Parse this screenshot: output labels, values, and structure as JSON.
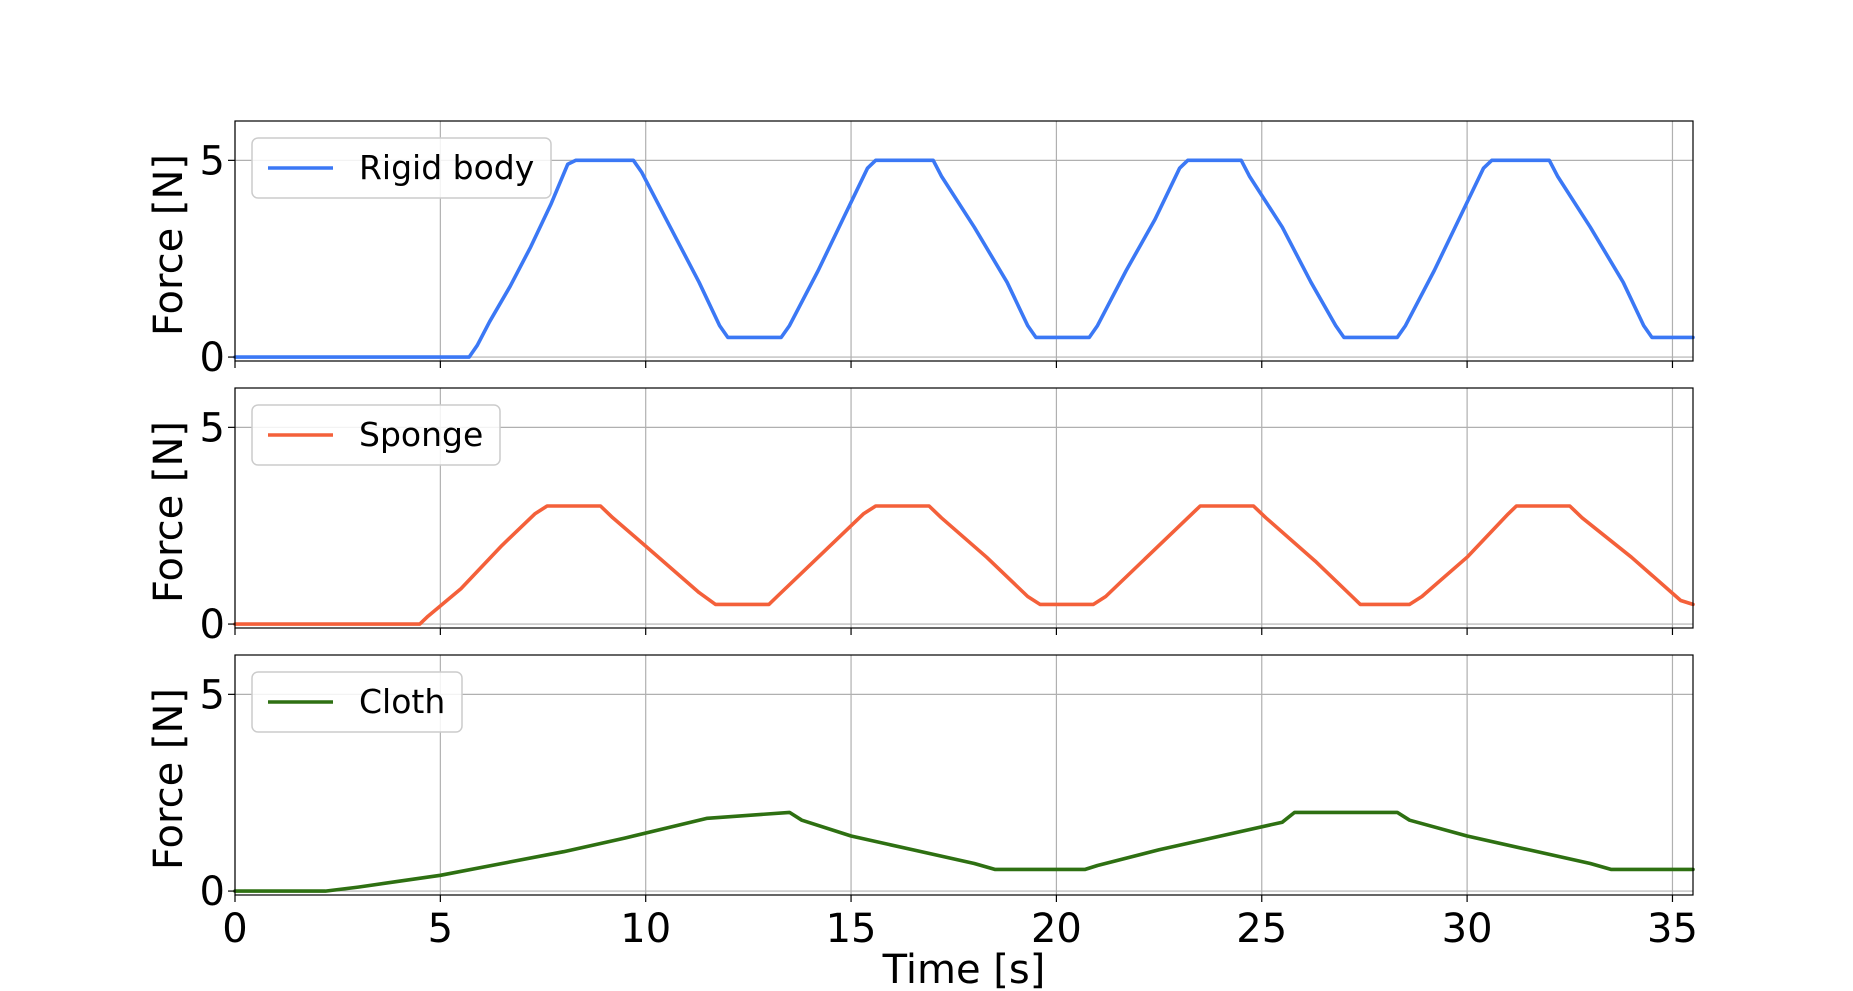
{
  "chart_data": [
    {
      "type": "line",
      "ylabel": "Force [N]",
      "xlim": [
        0,
        35.5
      ],
      "ylim": [
        -0.1,
        6.0
      ],
      "yticks": [
        0,
        5
      ],
      "grid": true,
      "legend_position": "top-left",
      "series": [
        {
          "name": "Rigid body",
          "color": "#3b78f5",
          "x": [
            0,
            5.7,
            5.9,
            6.2,
            6.7,
            7.2,
            7.7,
            8.1,
            8.3,
            9.7,
            9.9,
            10.6,
            11.3,
            11.8,
            12.0,
            13.3,
            13.5,
            14.2,
            14.8,
            15.4,
            15.6,
            17.0,
            17.2,
            18.0,
            18.8,
            19.3,
            19.5,
            20.8,
            21.0,
            21.7,
            22.4,
            23.0,
            23.2,
            24.5,
            24.7,
            25.5,
            26.2,
            26.8,
            27.0,
            28.3,
            28.5,
            29.2,
            29.8,
            30.4,
            30.6,
            32.0,
            32.2,
            33.0,
            33.8,
            34.3,
            34.5,
            35.5
          ],
          "y": [
            0,
            0,
            0.3,
            0.9,
            1.8,
            2.8,
            3.9,
            4.9,
            5.0,
            5.0,
            4.7,
            3.3,
            1.9,
            0.8,
            0.5,
            0.5,
            0.8,
            2.2,
            3.5,
            4.8,
            5.0,
            5.0,
            4.6,
            3.3,
            1.9,
            0.8,
            0.5,
            0.5,
            0.8,
            2.2,
            3.5,
            4.8,
            5.0,
            5.0,
            4.6,
            3.3,
            1.9,
            0.8,
            0.5,
            0.5,
            0.8,
            2.2,
            3.5,
            4.8,
            5.0,
            5.0,
            4.6,
            3.3,
            1.9,
            0.8,
            0.5,
            0.5
          ]
        }
      ]
    },
    {
      "type": "line",
      "ylabel": "Force [N]",
      "xlim": [
        0,
        35.5
      ],
      "ylim": [
        -0.1,
        6.0
      ],
      "yticks": [
        0,
        5
      ],
      "grid": true,
      "legend_position": "top-left",
      "series": [
        {
          "name": "Sponge",
          "color": "#f4603a",
          "x": [
            0,
            4.5,
            4.7,
            5.5,
            6.5,
            7.3,
            7.6,
            8.9,
            9.2,
            10.2,
            11.3,
            11.7,
            13.0,
            13.2,
            14.2,
            15.3,
            15.6,
            16.9,
            17.2,
            18.3,
            19.3,
            19.6,
            20.9,
            21.2,
            22.3,
            23.3,
            23.5,
            24.8,
            25.1,
            26.3,
            27.2,
            27.4,
            28.6,
            28.9,
            30.0,
            31.0,
            31.2,
            32.5,
            32.8,
            34.0,
            35.2,
            35.5
          ],
          "y": [
            0,
            0,
            0.2,
            0.9,
            2.0,
            2.8,
            3.0,
            3.0,
            2.7,
            1.8,
            0.8,
            0.5,
            0.5,
            0.7,
            1.7,
            2.8,
            3.0,
            3.0,
            2.7,
            1.7,
            0.7,
            0.5,
            0.5,
            0.7,
            1.8,
            2.8,
            3.0,
            3.0,
            2.7,
            1.6,
            0.7,
            0.5,
            0.5,
            0.7,
            1.7,
            2.8,
            3.0,
            3.0,
            2.7,
            1.7,
            0.6,
            0.5
          ]
        }
      ]
    },
    {
      "type": "line",
      "xlabel": "Time [s]",
      "ylabel": "Force [N]",
      "xlim": [
        0,
        35.5
      ],
      "ylim": [
        -0.1,
        6.0
      ],
      "xticks": [
        0,
        5,
        10,
        15,
        20,
        25,
        30,
        35
      ],
      "yticks": [
        0,
        5
      ],
      "grid": true,
      "legend_position": "top-left",
      "series": [
        {
          "name": "Cloth",
          "color": "#2e7012",
          "x": [
            0,
            2.2,
            3.0,
            4.0,
            5.0,
            6.5,
            8.0,
            9.5,
            10.5,
            11.5,
            13.5,
            13.8,
            15.0,
            16.5,
            18.0,
            18.5,
            20.7,
            21.0,
            22.5,
            24.0,
            25.5,
            25.8,
            28.3,
            28.6,
            30.0,
            31.5,
            33.0,
            33.5,
            35.5
          ],
          "y": [
            0,
            0,
            0.1,
            0.25,
            0.4,
            0.7,
            1.0,
            1.35,
            1.6,
            1.85,
            2.0,
            1.8,
            1.4,
            1.05,
            0.7,
            0.55,
            0.55,
            0.65,
            1.05,
            1.4,
            1.75,
            2.0,
            2.0,
            1.8,
            1.4,
            1.05,
            0.7,
            0.55,
            0.55
          ]
        }
      ]
    }
  ]
}
